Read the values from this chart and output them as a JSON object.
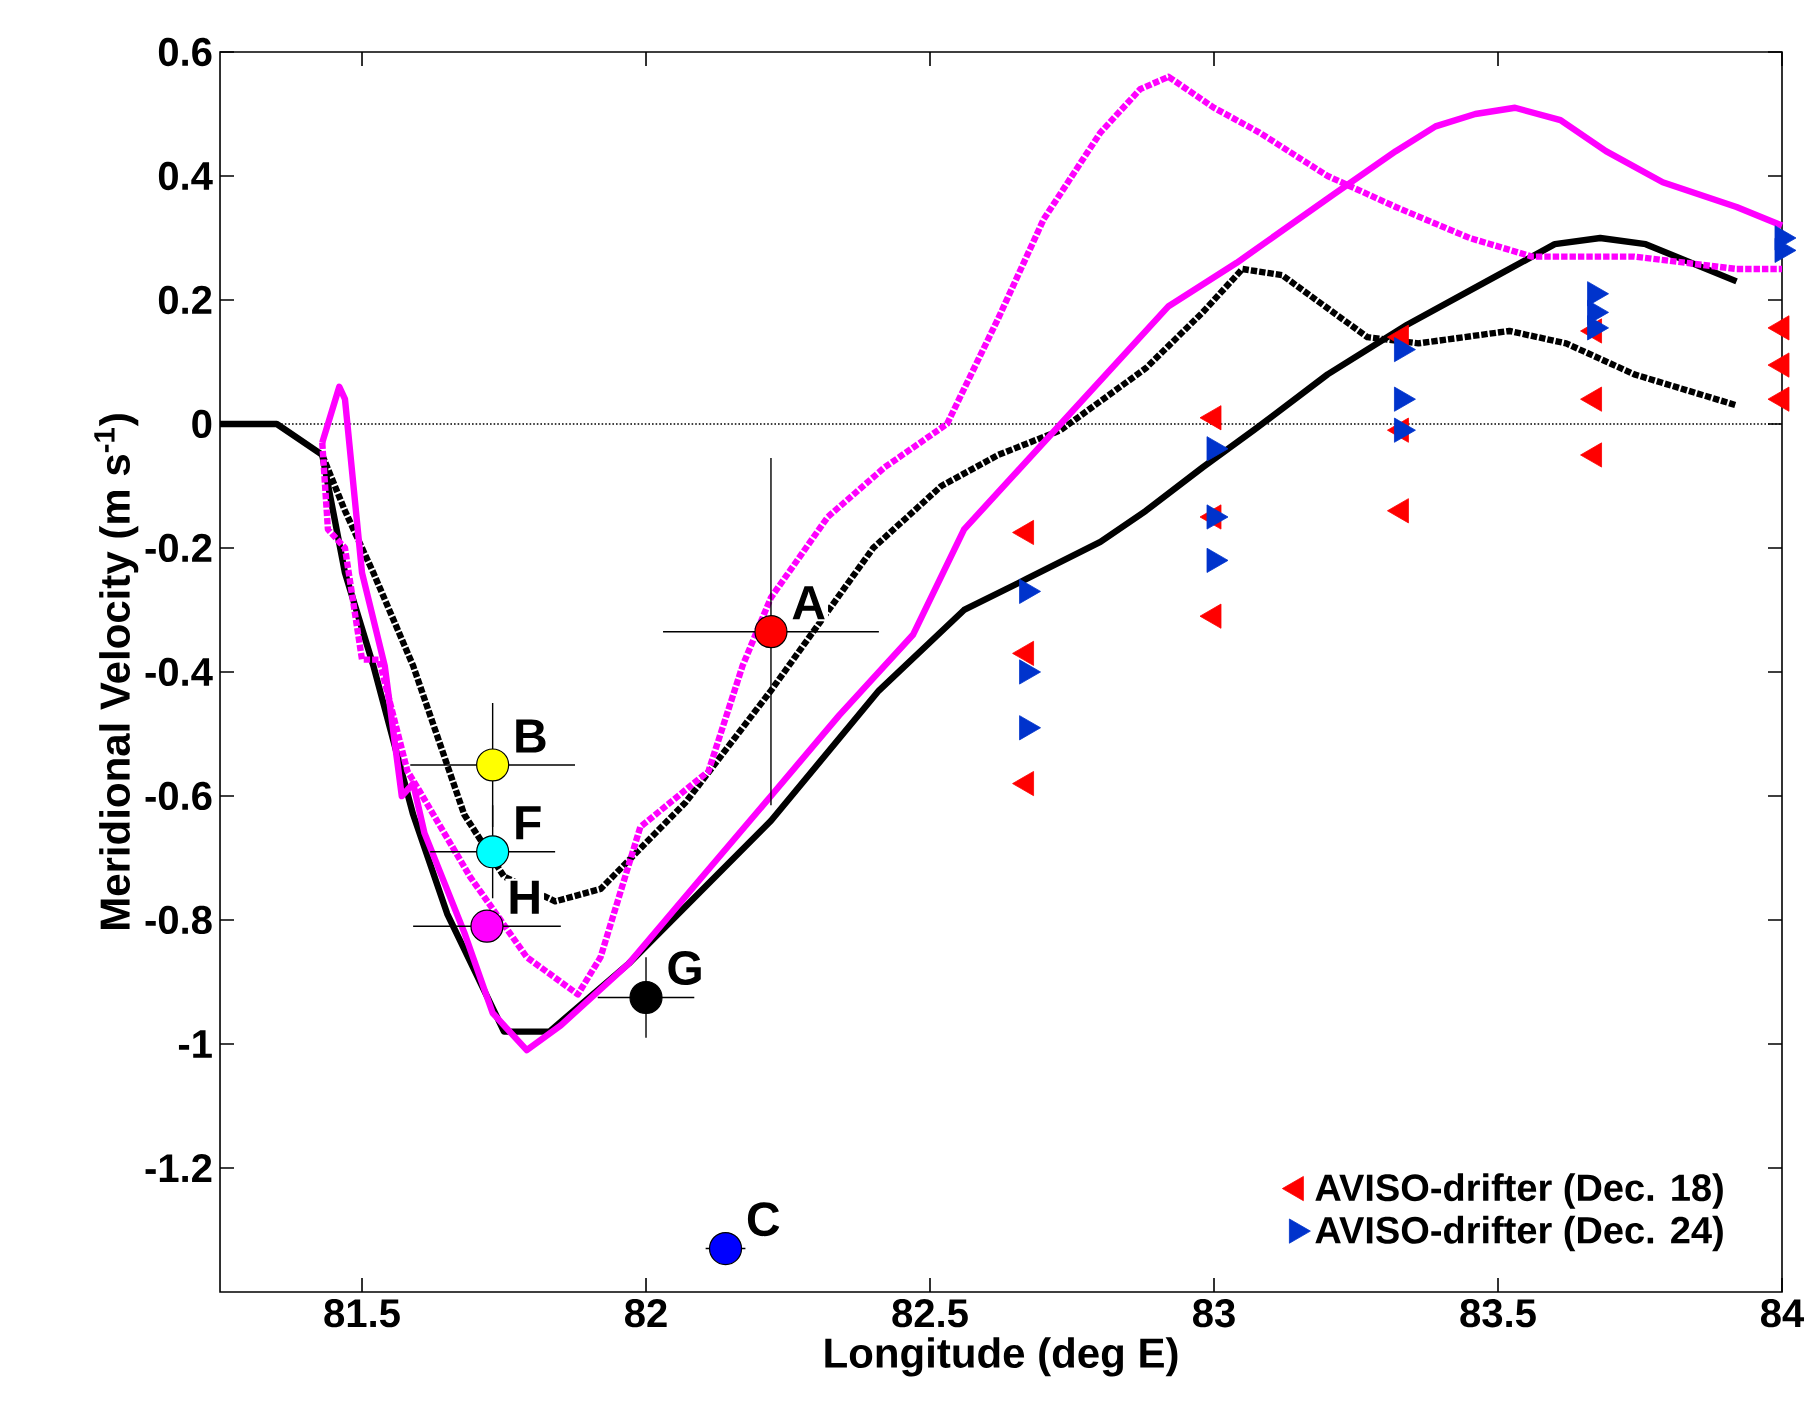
{
  "chart_data": {
    "type": "line",
    "xlabel": "Longitude (deg E)",
    "ylabel": "Meridional Velocity (m s$^{-1}$)",
    "xlim": [
      81.25,
      84
    ],
    "ylim": [
      -1.4,
      0.6
    ],
    "xticks": [
      81.5,
      82,
      82.5,
      83,
      83.5,
      84
    ],
    "yticks": [
      -1.2,
      -1,
      -0.8,
      -0.6,
      -0.4,
      -0.2,
      0,
      0.2,
      0.4,
      0.6
    ],
    "grid": false,
    "legend": "bottom right",
    "ref_lines": [
      {
        "axis": "y",
        "value": 0,
        "line_style": "dotted",
        "color": "#000000"
      }
    ],
    "series": [
      {
        "color": "#000000",
        "line_style": "solid",
        "x": [
          81.25,
          81.35,
          81.43,
          81.47,
          81.52,
          81.59,
          81.65,
          81.75,
          81.83,
          81.97,
          82.22,
          82.41,
          82.56,
          82.67,
          82.8,
          82.88,
          82.98,
          83.07,
          83.2,
          83.34,
          83.5,
          83.6,
          83.68,
          83.76,
          83.92
        ],
        "values": [
          0,
          0,
          -0.05,
          -0.24,
          -0.39,
          -0.63,
          -0.79,
          -0.98,
          -0.98,
          -0.87,
          -0.64,
          -0.43,
          -0.3,
          -0.25,
          -0.19,
          -0.14,
          -0.07,
          -0.01,
          0.08,
          0.16,
          0.24,
          0.29,
          0.3,
          0.29,
          0.23
        ]
      },
      {
        "color": "#000000",
        "line_style": "dotted",
        "x": [
          81.43,
          81.47,
          81.52,
          81.59,
          81.68,
          81.75,
          81.84,
          81.92,
          82.07,
          82.22,
          82.4,
          82.52,
          82.62,
          82.73,
          82.88,
          82.98,
          83.05,
          83.12,
          83.27,
          83.36,
          83.52,
          83.62,
          83.74,
          83.92
        ],
        "values": [
          -0.05,
          -0.14,
          -0.24,
          -0.39,
          -0.63,
          -0.73,
          -0.77,
          -0.75,
          -0.61,
          -0.43,
          -0.2,
          -0.1,
          -0.05,
          -0.01,
          0.09,
          0.18,
          0.25,
          0.24,
          0.14,
          0.13,
          0.15,
          0.13,
          0.08,
          0.03
        ]
      },
      {
        "color": "#ff00ff",
        "line_style": "solid",
        "x": [
          81.43,
          81.46,
          81.47,
          81.5,
          81.54,
          81.57,
          81.59,
          81.61,
          81.68,
          81.73,
          81.79,
          81.85,
          81.97,
          82.09,
          82.22,
          82.34,
          82.47,
          82.56,
          82.74,
          82.92,
          83.04,
          83.21,
          83.32,
          83.39,
          83.46,
          83.53,
          83.61,
          83.69,
          83.79,
          83.92,
          84
        ],
        "values": [
          -0.03,
          0.06,
          0.04,
          -0.24,
          -0.39,
          -0.6,
          -0.58,
          -0.66,
          -0.82,
          -0.95,
          -1.01,
          -0.97,
          -0.87,
          -0.74,
          -0.6,
          -0.47,
          -0.34,
          -0.17,
          0.01,
          0.19,
          0.26,
          0.37,
          0.44,
          0.48,
          0.5,
          0.51,
          0.49,
          0.44,
          0.39,
          0.35,
          0.32
        ]
      },
      {
        "color": "#ff00ff",
        "line_style": "dotted",
        "x": [
          81.43,
          81.44,
          81.47,
          81.5,
          81.53,
          81.58,
          81.6,
          81.69,
          81.79,
          81.88,
          81.92,
          81.99,
          82.11,
          82.17,
          82.22,
          82.32,
          82.42,
          82.53,
          82.62,
          82.7,
          82.8,
          82.87,
          82.92,
          83,
          83.08,
          83.2,
          83.32,
          83.45,
          83.56,
          83.74,
          83.92,
          84
        ],
        "values": [
          -0.03,
          -0.17,
          -0.2,
          -0.38,
          -0.38,
          -0.56,
          -0.59,
          -0.73,
          -0.86,
          -0.92,
          -0.86,
          -0.65,
          -0.56,
          -0.39,
          -0.28,
          -0.15,
          -0.07,
          0,
          0.17,
          0.33,
          0.47,
          0.54,
          0.56,
          0.51,
          0.47,
          0.4,
          0.35,
          0.3,
          0.27,
          0.27,
          0.25,
          0.25
        ]
      },
      {
        "type": "scatter",
        "marker": "triangle-left",
        "name": "AVISO-drifter (Dec. 18)",
        "color": "#ff0000",
        "x": [
          82.67,
          82.67,
          82.67,
          83,
          83,
          83,
          83.33,
          83.33,
          83.33,
          83.67,
          83.67,
          83.67,
          84,
          84,
          84
        ],
        "values": [
          -0.175,
          -0.37,
          -0.58,
          0.01,
          -0.15,
          -0.31,
          0.14,
          -0.01,
          -0.14,
          0.15,
          0.04,
          -0.05,
          0.155,
          0.095,
          0.04
        ]
      },
      {
        "type": "scatter",
        "marker": "triangle-right",
        "name": "AVISO-drifter (Dec. 24)",
        "color": "#0033cc",
        "x": [
          82.67,
          82.67,
          82.67,
          83,
          83,
          83,
          83.33,
          83.33,
          83.33,
          83.67,
          83.67,
          83.67,
          84,
          84
        ],
        "values": [
          -0.27,
          -0.4,
          -0.49,
          -0.04,
          -0.15,
          -0.22,
          0.12,
          0.04,
          -0.01,
          0.21,
          0.18,
          0.155,
          0.3,
          0.28
        ]
      },
      {
        "type": "scatter",
        "marker": "circle",
        "colors": [
          "#ff0000",
          "#ffff00",
          "#00ffff",
          "#ff00ff",
          "#000000",
          "#0000ff"
        ],
        "x": [
          82.22,
          81.73,
          81.73,
          81.72,
          82,
          82.14
        ],
        "values": [
          -0.335,
          -0.55,
          -0.69,
          -0.81,
          -0.925,
          -1.33
        ],
        "errors": [
          0.28,
          0.1,
          0.075,
          null,
          0.065,
          null
        ],
        "xerrors": [
          0.19,
          0.145,
          0.11,
          0.13,
          0.085,
          0.035
        ]
      }
    ],
    "annotations": [
      {
        "text": "A",
        "x": 82.22,
        "y": -0.335
      },
      {
        "text": "B",
        "x": 81.73,
        "y": -0.55
      },
      {
        "text": "F",
        "x": 81.73,
        "y": -0.69
      },
      {
        "text": "H",
        "x": 81.72,
        "y": -0.81
      },
      {
        "text": "G",
        "x": 82,
        "y": -0.925
      },
      {
        "text": "C",
        "x": 82.14,
        "y": -1.33
      }
    ]
  }
}
